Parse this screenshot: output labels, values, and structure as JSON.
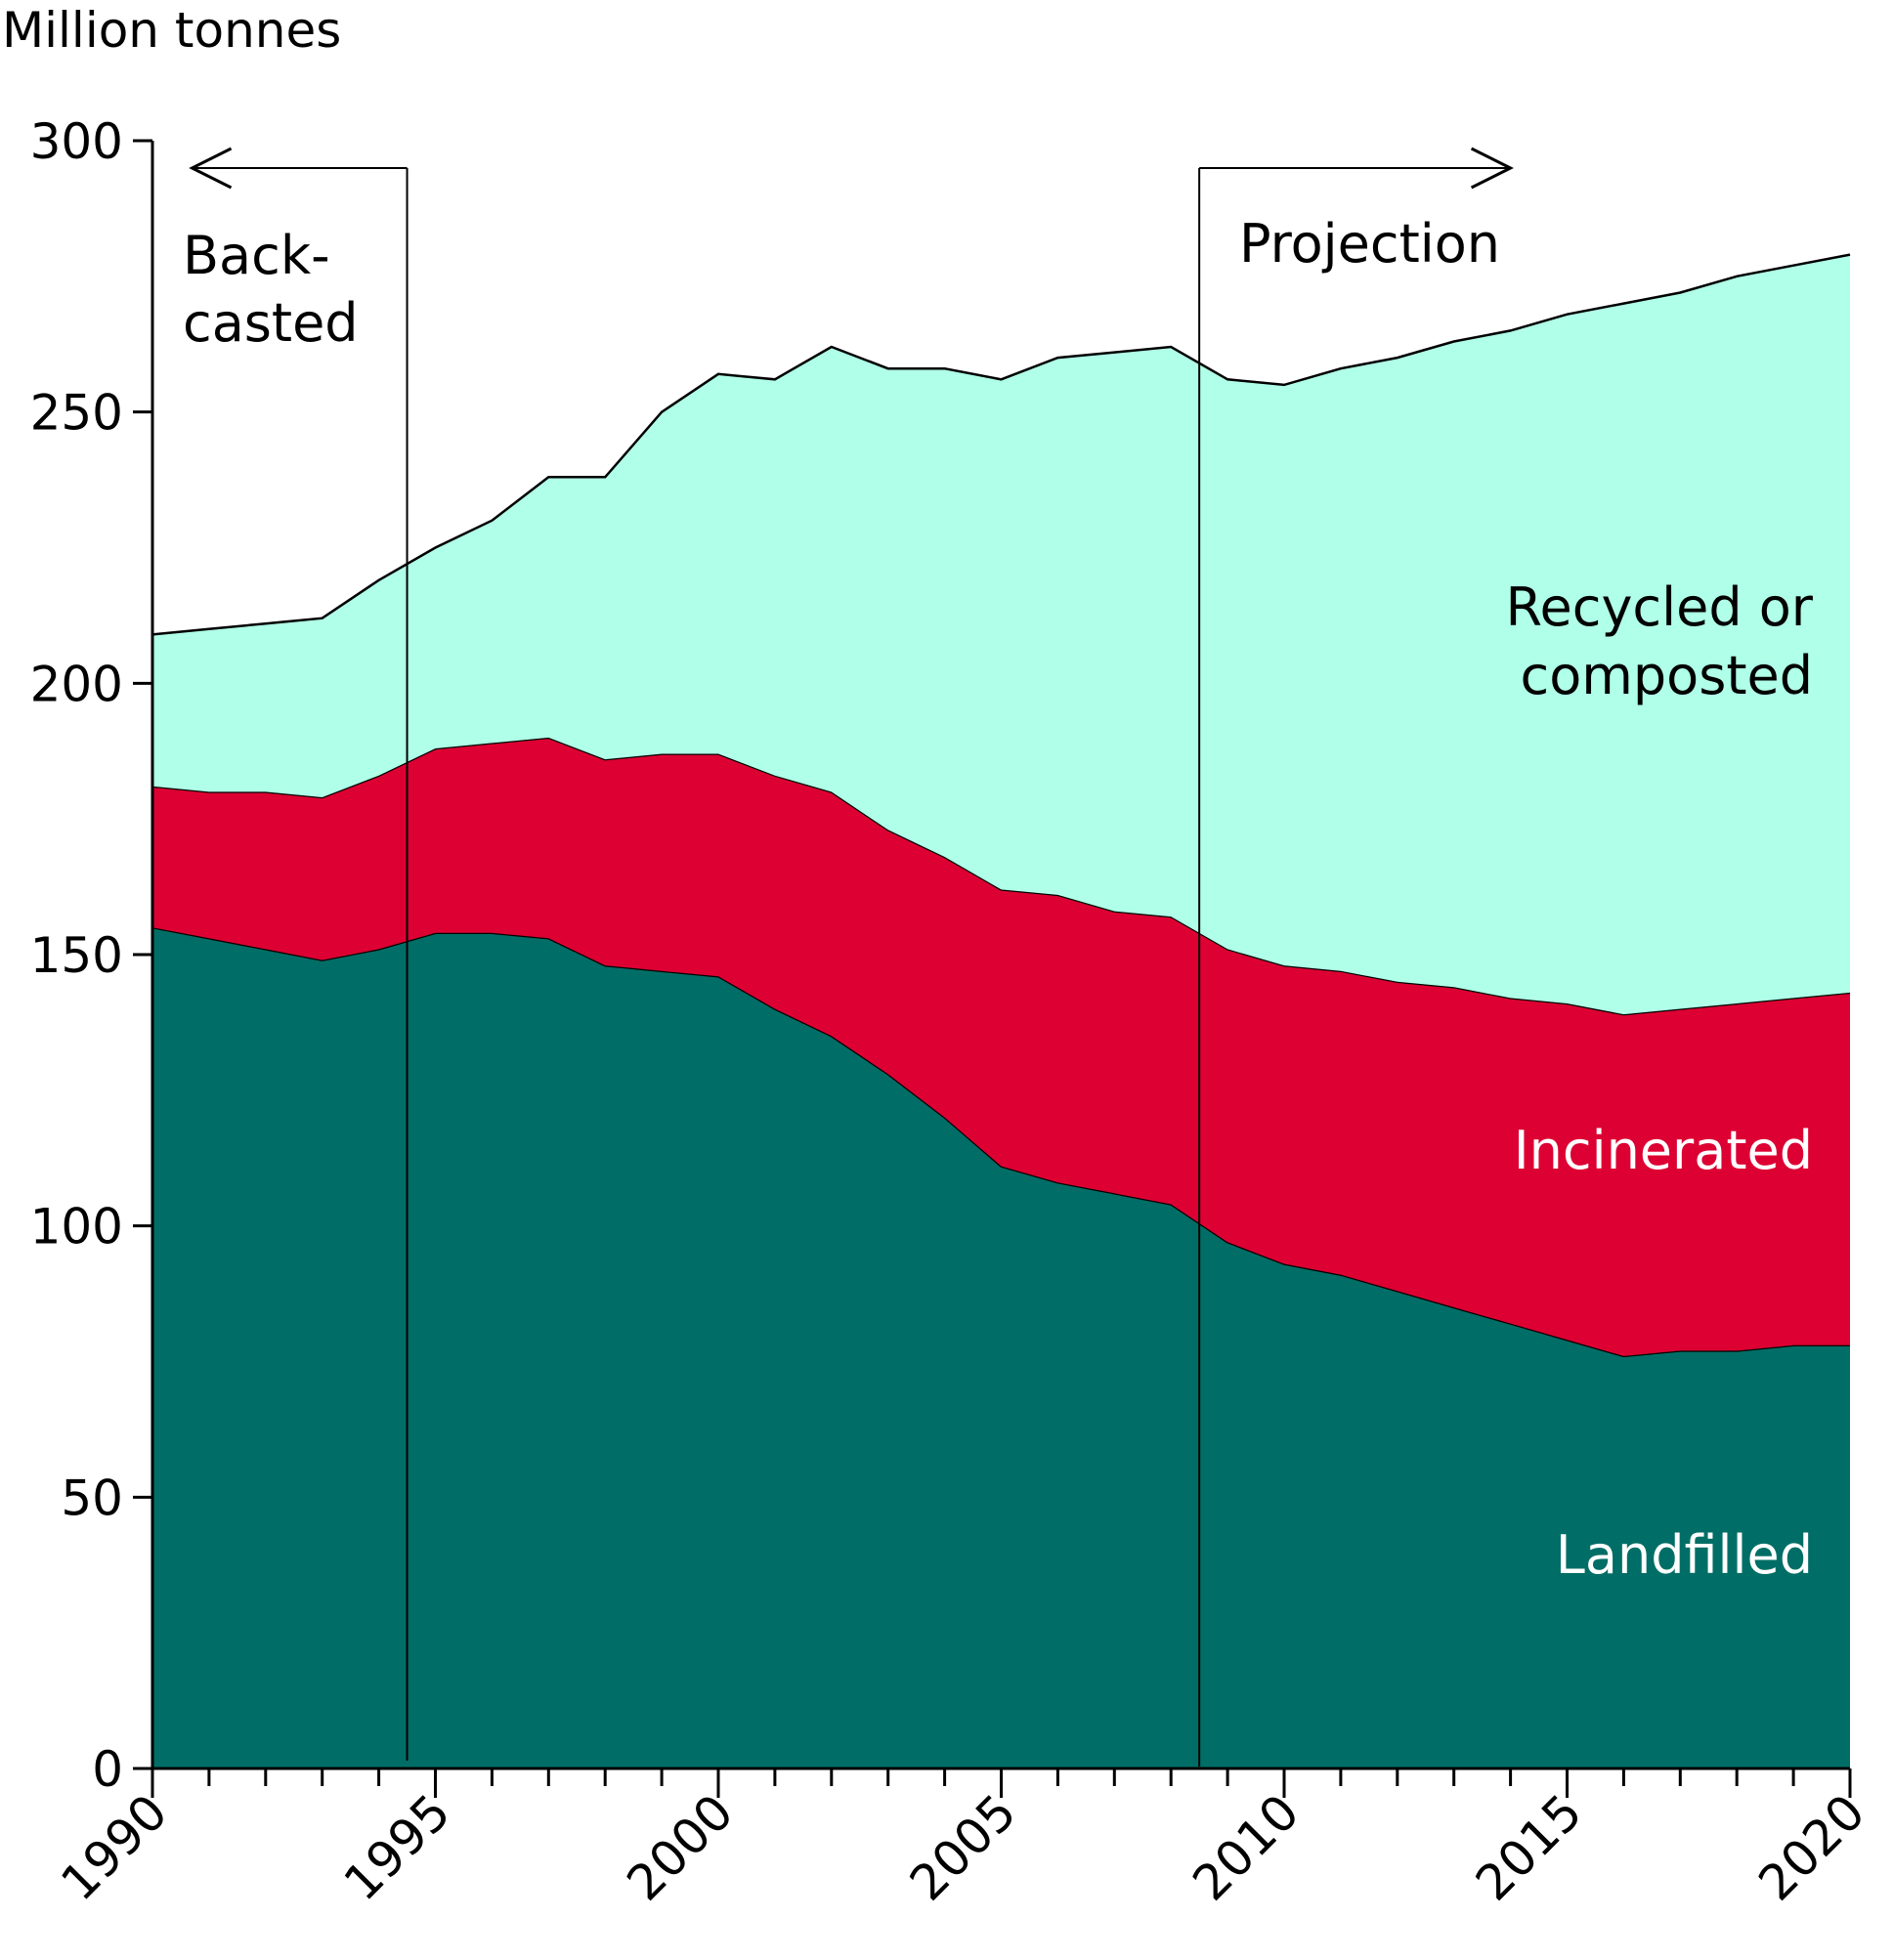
{
  "chart_data": {
    "type": "area",
    "stacked": true,
    "title": "",
    "xlabel": "",
    "ylabel": "Million tonnes",
    "xlim": [
      1990,
      2020
    ],
    "ylim": [
      0,
      300
    ],
    "yticks": [
      0,
      50,
      100,
      150,
      200,
      250,
      300
    ],
    "xtick_labels": [
      "1990",
      "1995",
      "2000",
      "2005",
      "2010",
      "2015",
      "2020"
    ],
    "x": [
      1990,
      1991,
      1992,
      1993,
      1994,
      1995,
      1996,
      1997,
      1998,
      1999,
      2000,
      2001,
      2002,
      2003,
      2004,
      2005,
      2006,
      2007,
      2008,
      2009,
      2010,
      2011,
      2012,
      2013,
      2014,
      2015,
      2016,
      2017,
      2018,
      2019,
      2020
    ],
    "series": [
      {
        "name": "Landfilled",
        "color": "#006e66",
        "label_color": "#ffffff",
        "values": [
          155,
          153,
          151,
          149,
          151,
          154,
          154,
          153,
          148,
          147,
          146,
          140,
          135,
          128,
          120,
          111,
          108,
          106,
          104,
          97,
          93,
          91,
          88,
          85,
          82,
          79,
          76,
          77,
          77,
          78,
          78
        ]
      },
      {
        "name": "Incinerated",
        "color": "#dd0033",
        "label_color": "#ffffff",
        "values": [
          26,
          27,
          29,
          30,
          32,
          34,
          35,
          37,
          38,
          40,
          41,
          43,
          45,
          45,
          48,
          51,
          53,
          52,
          53,
          54,
          55,
          56,
          57,
          59,
          60,
          62,
          63,
          63,
          64,
          64,
          65
        ]
      },
      {
        "name": "Recycled or composted",
        "color": "#b0ffe8",
        "label_color": "#000000",
        "values": [
          28,
          30,
          31,
          33,
          36,
          37,
          41,
          48,
          52,
          63,
          70,
          73,
          82,
          85,
          90,
          94,
          99,
          103,
          105,
          105,
          107,
          111,
          115,
          119,
          123,
          127,
          131,
          132,
          134,
          135,
          136
        ]
      }
    ],
    "annotations": [
      {
        "line1": "Back-",
        "line2": "casted",
        "x_boundary": 1994.5,
        "arrow_direction": "left",
        "arrow_to": 1990.7
      },
      {
        "line1": "Projection",
        "line2": "",
        "x_boundary": 2008.5,
        "arrow_direction": "right",
        "arrow_to": 2014
      }
    ],
    "grid": false,
    "legend": "inline labels"
  }
}
